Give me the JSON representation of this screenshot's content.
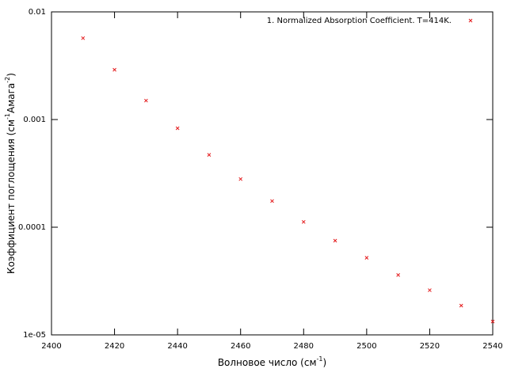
{
  "chart_data": {
    "type": "scatter",
    "y_label": [
      "Коэффициент поглощения (см",
      "-1",
      "Амага",
      "-2",
      ")"
    ],
    "x_label": [
      "Волновое число (см",
      "-1",
      ")"
    ],
    "series": [
      {
        "name": "1. Normalized Absorption Coefficient. T=414K.",
        "color": "#e41a1c",
        "x": [
          2410,
          2420,
          2430,
          2440,
          2450,
          2460,
          2470,
          2480,
          2490,
          2500,
          2510,
          2520,
          2530,
          2540
        ],
        "values": [
          0.0057,
          0.0029,
          0.0015,
          0.00083,
          0.00047,
          0.00028,
          0.000175,
          0.000112,
          7.5e-05,
          5.2e-05,
          3.6e-05,
          2.6e-05,
          1.87e-05,
          1.33e-05
        ]
      }
    ],
    "xlim": [
      2400,
      2540
    ],
    "xticks": [
      2400,
      2420,
      2440,
      2460,
      2480,
      2500,
      2520,
      2540
    ],
    "ylim": [
      1e-05,
      0.01
    ],
    "yticks": [
      {
        "value": 1e-05,
        "label": "1e-05"
      },
      0.0001,
      0.001,
      0.01
    ],
    "log_y": true,
    "grid": false,
    "legend": "top-right"
  }
}
